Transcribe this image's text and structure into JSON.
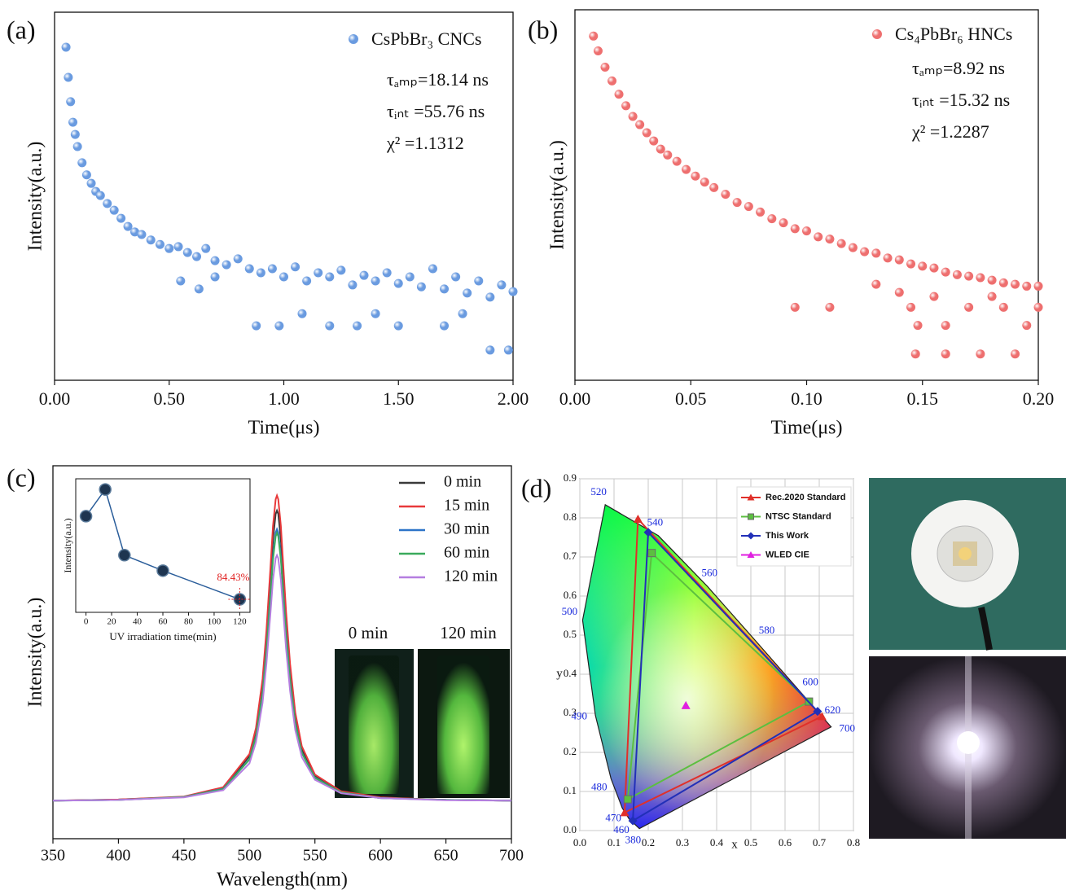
{
  "chart_data": [
    {
      "type": "scatter",
      "panel": "(a)",
      "xlabel": "Time(μs)",
      "ylabel": "Intensity(a.u.)",
      "xlim": [
        0,
        2
      ],
      "ylim": [
        0,
        100
      ],
      "xticks": [
        {
          "value": 0,
          "label": "0.00"
        },
        {
          "value": 0.5,
          "label": "0.50"
        },
        {
          "value": 1,
          "label": "1.00"
        },
        {
          "value": 1.5,
          "label": "1.50"
        },
        {
          "value": 2,
          "label": "2.00"
        }
      ],
      "legend": "upper right",
      "annotations": [
        "τₐₘₚ=18.14 ns",
        "τᵢₙₜ =55.76 ns",
        "χ² =1.1312"
      ],
      "series": [
        {
          "name": "CsPbBr₃ CNCs",
          "color": "#6a9be0",
          "x": [
            0.05,
            0.06,
            0.07,
            0.08,
            0.09,
            0.1,
            0.12,
            0.14,
            0.16,
            0.18,
            0.2,
            0.23,
            0.26,
            0.29,
            0.32,
            0.35,
            0.38,
            0.42,
            0.46,
            0.5,
            0.54,
            0.58,
            0.62,
            0.66,
            0.7,
            0.75,
            0.8,
            0.85,
            0.9,
            0.95,
            1.0,
            1.05,
            1.1,
            1.15,
            1.2,
            1.25,
            1.3,
            1.35,
            1.4,
            1.45,
            1.5,
            1.55,
            1.6,
            1.65,
            1.7,
            1.75,
            1.8,
            1.85,
            1.9,
            1.95,
            2.0,
            0.55,
            0.7,
            0.88,
            0.98,
            1.2,
            1.32,
            1.5,
            1.7,
            1.9,
            1.98,
            0.63,
            1.08,
            1.4,
            1.78
          ],
          "values": [
            90.5,
            82.3,
            75.7,
            70.1,
            66.8,
            63.5,
            59.1,
            55.8,
            53.5,
            51.3,
            50.2,
            48.0,
            46.2,
            44.0,
            41.8,
            40.3,
            39.6,
            38.1,
            36.9,
            35.8,
            36.3,
            34.7,
            33.6,
            35.8,
            32.5,
            31.4,
            33.0,
            30.3,
            29.2,
            30.3,
            28.1,
            30.8,
            27.0,
            29.2,
            28.1,
            29.9,
            25.9,
            28.5,
            27.0,
            29.2,
            26.3,
            28.1,
            25.4,
            30.3,
            24.8,
            28.1,
            23.7,
            27.0,
            22.6,
            25.9,
            24.1,
            27.0,
            28.1,
            14.8,
            14.8,
            14.8,
            14.8,
            14.8,
            14.8,
            8.2,
            8.2,
            24.8,
            18.1,
            18.1,
            18.1
          ]
        }
      ]
    },
    {
      "type": "scatter",
      "panel": "(b)",
      "xlabel": "Time(μs)",
      "ylabel": "Intensity(a.u.)",
      "xlim": [
        0,
        0.2
      ],
      "ylim": [
        0,
        100
      ],
      "xticks": [
        {
          "value": 0,
          "label": "0.00"
        },
        {
          "value": 0.05,
          "label": "0.05"
        },
        {
          "value": 0.1,
          "label": "0.10"
        },
        {
          "value": 0.15,
          "label": "0.15"
        },
        {
          "value": 0.2,
          "label": "0.20"
        }
      ],
      "legend": "upper right",
      "annotations": [
        "τₐₘₚ=8.92 ns",
        "τᵢₙₜ =15.32 ns",
        "χ² =1.2287"
      ],
      "series": [
        {
          "name": "Cs₄PbBr₆ HNCs",
          "color": "#ee6f6f",
          "x": [
            0.008,
            0.01,
            0.013,
            0.016,
            0.019,
            0.022,
            0.025,
            0.028,
            0.031,
            0.034,
            0.037,
            0.04,
            0.044,
            0.048,
            0.052,
            0.056,
            0.06,
            0.065,
            0.07,
            0.075,
            0.08,
            0.085,
            0.09,
            0.095,
            0.1,
            0.105,
            0.11,
            0.115,
            0.12,
            0.125,
            0.13,
            0.135,
            0.14,
            0.145,
            0.15,
            0.155,
            0.16,
            0.165,
            0.17,
            0.175,
            0.18,
            0.185,
            0.19,
            0.195,
            0.2,
            0.095,
            0.11,
            0.145,
            0.148,
            0.16,
            0.17,
            0.147,
            0.16,
            0.175,
            0.19,
            0.195,
            0.185,
            0.13,
            0.14,
            0.155,
            0.18,
            0.2
          ],
          "values": [
            92.9,
            88.9,
            84.5,
            80.8,
            77.2,
            74.1,
            71.2,
            69.0,
            66.8,
            64.6,
            62.4,
            60.8,
            59.1,
            56.9,
            55.1,
            53.5,
            52.0,
            50.2,
            48.0,
            46.9,
            45.4,
            43.6,
            42.5,
            40.9,
            40.3,
            38.7,
            38.1,
            36.9,
            35.8,
            34.7,
            34.3,
            33.0,
            32.5,
            31.4,
            30.8,
            30.3,
            29.2,
            28.5,
            28.1,
            27.7,
            27.0,
            26.3,
            25.9,
            25.4,
            25.4,
            19.7,
            19.7,
            19.7,
            14.8,
            14.8,
            19.7,
            7.1,
            7.1,
            7.1,
            7.1,
            14.8,
            19.7,
            25.9,
            23.7,
            22.6,
            22.6,
            19.7
          ]
        }
      ]
    },
    {
      "type": "line",
      "panel": "(c)",
      "xlabel": "Wavelength(nm)",
      "ylabel": "Intensity(a.u.)",
      "xlim": [
        350,
        700
      ],
      "ylim": [
        0,
        1
      ],
      "xticks": [
        350,
        400,
        450,
        500,
        550,
        600,
        650,
        700
      ],
      "legend": "upper right",
      "x": [
        350,
        400,
        450,
        480,
        500,
        505,
        510,
        513,
        516,
        518,
        520,
        521,
        522,
        524,
        526,
        528,
        531,
        535,
        540,
        550,
        570,
        600,
        650,
        700
      ],
      "series": [
        {
          "name": "0 min",
          "color": "#3a3a3a",
          "values": [
            0.102,
            0.105,
            0.112,
            0.136,
            0.221,
            0.287,
            0.412,
            0.537,
            0.693,
            0.802,
            0.871,
            0.88,
            0.871,
            0.802,
            0.693,
            0.584,
            0.451,
            0.326,
            0.24,
            0.169,
            0.126,
            0.11,
            0.104,
            0.102
          ]
        },
        {
          "name": "15 min",
          "color": "#e8393a",
          "values": [
            0.102,
            0.105,
            0.113,
            0.138,
            0.227,
            0.297,
            0.428,
            0.559,
            0.723,
            0.838,
            0.91,
            0.92,
            0.91,
            0.838,
            0.723,
            0.608,
            0.469,
            0.338,
            0.248,
            0.172,
            0.127,
            0.111,
            0.104,
            0.102
          ]
        },
        {
          "name": "30 min",
          "color": "#2d74c8",
          "values": [
            0.102,
            0.104,
            0.112,
            0.134,
            0.213,
            0.275,
            0.392,
            0.509,
            0.655,
            0.757,
            0.821,
            0.83,
            0.821,
            0.757,
            0.655,
            0.553,
            0.429,
            0.312,
            0.231,
            0.164,
            0.124,
            0.109,
            0.104,
            0.102
          ]
        },
        {
          "name": "60 min",
          "color": "#3aaa5c",
          "values": [
            0.102,
            0.104,
            0.112,
            0.133,
            0.212,
            0.273,
            0.388,
            0.503,
            0.647,
            0.748,
            0.811,
            0.82,
            0.811,
            0.748,
            0.647,
            0.546,
            0.424,
            0.309,
            0.23,
            0.163,
            0.124,
            0.109,
            0.104,
            0.102
          ]
        },
        {
          "name": "120 min",
          "color": "#b57ee0",
          "values": [
            0.102,
            0.104,
            0.111,
            0.13,
            0.202,
            0.258,
            0.364,
            0.47,
            0.602,
            0.694,
            0.752,
            0.76,
            0.752,
            0.694,
            0.602,
            0.509,
            0.397,
            0.291,
            0.219,
            0.158,
            0.122,
            0.109,
            0.103,
            0.102
          ]
        }
      ],
      "inset": {
        "type": "line",
        "xlabel": "UV irradiation time(min)",
        "ylabel": "Intensity(a.u.)",
        "xlim": [
          -8,
          128
        ],
        "ylim": [
          82,
          107
        ],
        "xticks": [
          0,
          20,
          40,
          60,
          80,
          100,
          120
        ],
        "x": [
          0,
          15,
          30,
          60,
          120
        ],
        "values": [
          100,
          105,
          92.7,
          89.8,
          84.43
        ],
        "value_labels": [
          null,
          null,
          null,
          null,
          "84.43%"
        ],
        "color": "#2a5d9a"
      },
      "photo_labels": [
        "0 min",
        "120 min"
      ]
    },
    {
      "type": "cie",
      "panel": "(d)",
      "xlabel": "x",
      "ylabel": "y",
      "xlim": [
        0,
        0.8
      ],
      "ylim": [
        0,
        0.9
      ],
      "grid": true,
      "xticks": [
        {
          "value": 0,
          "label": "0.0"
        },
        0.1,
        0.2,
        0.3,
        0.4,
        0.5,
        0.6,
        0.7,
        0.8
      ],
      "yticks": [
        {
          "value": 0,
          "label": "0.0"
        },
        0.1,
        0.2,
        0.3,
        0.4,
        0.5,
        0.6,
        0.7,
        0.8,
        0.9
      ],
      "legend": "upper right",
      "locus": {
        "wavelengths": [
          380,
          460,
          470,
          480,
          490,
          500,
          520,
          540,
          560,
          580,
          600,
          620,
          700
        ],
        "x": [
          0.1741,
          0.144,
          0.1241,
          0.0913,
          0.0454,
          0.0082,
          0.0743,
          0.2296,
          0.3731,
          0.5125,
          0.627,
          0.6915,
          0.7347
        ],
        "y": [
          0.005,
          0.0297,
          0.0578,
          0.1327,
          0.295,
          0.5384,
          0.8338,
          0.7543,
          0.6245,
          0.4866,
          0.3725,
          0.3083,
          0.2653
        ]
      },
      "series": [
        {
          "name": "Rec.2020 Standard",
          "color": "#e0302a",
          "marker": "triangle",
          "x": [
            0.708,
            0.17,
            0.131
          ],
          "y": [
            0.292,
            0.797,
            0.046
          ]
        },
        {
          "name": "NTSC Standard",
          "color": "#5cbf40",
          "marker": "square",
          "x": [
            0.67,
            0.21,
            0.14
          ],
          "y": [
            0.33,
            0.71,
            0.08
          ]
        },
        {
          "name": "This Work",
          "color": "#2230b8",
          "marker": "diamond",
          "x": [
            0.695,
            0.2,
            0.155
          ],
          "y": [
            0.305,
            0.763,
            0.025
          ]
        },
        {
          "name": "WLED CIE",
          "color": "#e020e0",
          "marker": "triangle",
          "x": [
            0.31
          ],
          "y": [
            0.32
          ]
        }
      ]
    }
  ]
}
